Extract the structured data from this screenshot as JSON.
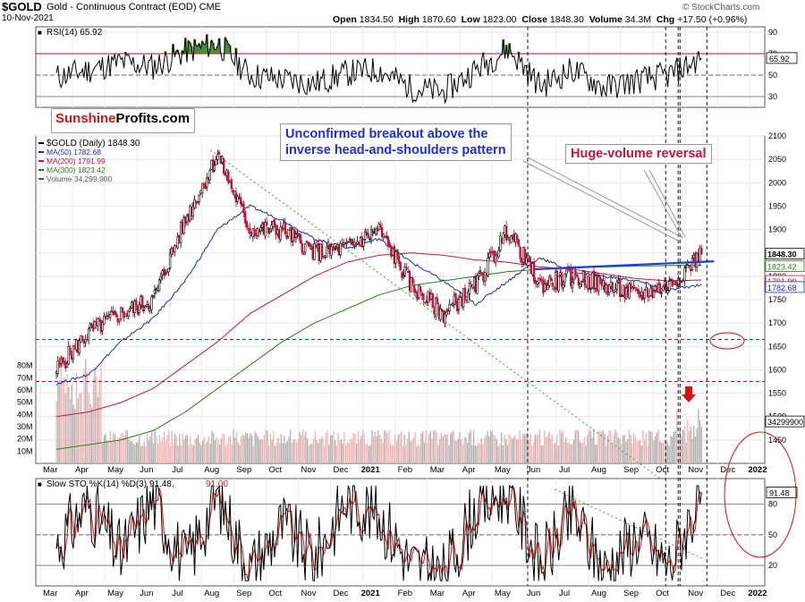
{
  "header": {
    "symbol": "$GOLD",
    "name": "Gold - Continuous Contract (EOD)",
    "exchange": "CME",
    "date": "10-Nov-2021",
    "open_label": "Open",
    "open": "1834.50",
    "high_label": "High",
    "high": "1870.60",
    "low_label": "Low",
    "low": "1823.00",
    "close_label": "Close",
    "close": "1848.30",
    "volume_label": "Volume",
    "volume": "34.3M",
    "chg_label": "Chg",
    "chg": "+17.50 (+0.96%)",
    "watermark": "© StockCharts.com"
  },
  "annotations": {
    "logo_part1": "Sunshine",
    "logo_part2": "Profits.com",
    "breakout_line1": "Unconfirmed breakout above the",
    "breakout_line2": "inverse head-and-shoulders pattern",
    "reversal": "Huge-volume reversal"
  },
  "colors": {
    "price_line": "#000000",
    "ma50": "#1a2fa8",
    "ma200": "#c0163a",
    "ma300": "#2a7a1a",
    "volume_up": "#f2b4b4",
    "volume_down": "#b0b0b0",
    "neckline": "#1f3fd6",
    "support_dashed": "#a0163a",
    "trendline": "#3aa03a",
    "stoch_k": "#000000",
    "stoch_d": "#d02020",
    "annotation_blue": "#1f2fd0",
    "annotation_red": "#c0163a",
    "rsi_fill": "#4a8a3a"
  },
  "chart_data": [
    {
      "type": "line",
      "panel": "rsi",
      "title": "RSI(14) 65.92",
      "current_value": "65.92",
      "ylim": [
        20,
        95
      ],
      "yticks": [
        "90",
        "70",
        "50",
        "30"
      ],
      "reference_lines": [
        70,
        50,
        30
      ],
      "dates": [
        "2020-03",
        "2020-04",
        "2020-05",
        "2020-06",
        "2020-07",
        "2020-08",
        "2020-09",
        "2020-10",
        "2020-11",
        "2020-12",
        "2021-01",
        "2021-02",
        "2021-03",
        "2021-04",
        "2021-05",
        "2021-06",
        "2021-07",
        "2021-08",
        "2021-09",
        "2021-10",
        "2021-11"
      ],
      "values": [
        48,
        55,
        62,
        58,
        72,
        80,
        50,
        46,
        42,
        52,
        55,
        38,
        34,
        55,
        75,
        40,
        55,
        38,
        45,
        50,
        65.92
      ]
    },
    {
      "type": "candlestick",
      "panel": "price",
      "title": "$GOLD (Daily) 1848.30",
      "ylim": [
        1400,
        2100
      ],
      "yticks": [
        "2100",
        "2050",
        "2000",
        "1950",
        "1900",
        "1850",
        "1800",
        "1750",
        "1700",
        "1650",
        "1600",
        "1550",
        "1500",
        "1450"
      ],
      "volume_yticks": [
        "80M",
        "70M",
        "60M",
        "50M",
        "40M",
        "30M",
        "20M",
        "10M"
      ],
      "x_month_labels": [
        "Mar",
        "Apr",
        "May",
        "Jun",
        "Jul",
        "Aug",
        "Sep",
        "Oct",
        "Nov",
        "Dec",
        "2021",
        "Feb",
        "Mar",
        "Apr",
        "May",
        "Jun",
        "Jul",
        "Aug",
        "Sep",
        "Oct",
        "Nov",
        "Dec",
        "2022"
      ],
      "legend": [
        {
          "label": "$GOLD (Daily) 1848.30"
        },
        {
          "label": "MA(50) 1782.68"
        },
        {
          "label": "MA(200) 1791.99"
        },
        {
          "label": "MA(300) 1823.42"
        },
        {
          "label": "Volume 34,299,900"
        }
      ],
      "right_labels": [
        "1848.30",
        "1823.42",
        "1791.99",
        "1782.68",
        "34299900"
      ],
      "dates": [
        "2020-03",
        "2020-04",
        "2020-05",
        "2020-06",
        "2020-07",
        "2020-08",
        "2020-09",
        "2020-10",
        "2020-11",
        "2020-12",
        "2021-01",
        "2021-02",
        "2021-03",
        "2021-04",
        "2021-05",
        "2021-06",
        "2021-07",
        "2021-08",
        "2021-09",
        "2021-10",
        "2021-11"
      ],
      "series": [
        {
          "name": "$GOLD",
          "values": [
            1600,
            1680,
            1720,
            1750,
            1920,
            2060,
            1900,
            1900,
            1850,
            1860,
            1900,
            1780,
            1720,
            1780,
            1900,
            1780,
            1800,
            1780,
            1760,
            1780,
            1848.3
          ]
        },
        {
          "name": "MA(50)",
          "values": [
            1570,
            1590,
            1660,
            1710,
            1790,
            1900,
            1950,
            1920,
            1880,
            1860,
            1880,
            1830,
            1790,
            1740,
            1790,
            1840,
            1810,
            1800,
            1790,
            1770,
            1782.68
          ]
        },
        {
          "name": "MA(200)",
          "values": [
            1500,
            1510,
            1530,
            1560,
            1610,
            1660,
            1720,
            1760,
            1800,
            1830,
            1845,
            1850,
            1845,
            1835,
            1830,
            1820,
            1815,
            1805,
            1795,
            1790,
            1791.99
          ]
        },
        {
          "name": "MA(300)",
          "values": [
            1430,
            1440,
            1450,
            1470,
            1510,
            1560,
            1610,
            1660,
            1700,
            1730,
            1760,
            1780,
            1790,
            1800,
            1810,
            1815,
            1818,
            1820,
            1822,
            1823,
            1823.42
          ]
        }
      ],
      "neckline": {
        "from": [
          "2021-06",
          1815
        ],
        "to": [
          "2021-11",
          1832
        ]
      },
      "support_levels": [
        1665,
        1575
      ],
      "vertical_markers": [
        "2021-06",
        "2021-10a",
        "2021-10b",
        "2021-11a",
        "2021-11b"
      ]
    },
    {
      "type": "line",
      "panel": "stochastic",
      "title": "Slow STO %K(14) %D(3) 91.48, 91.00",
      "title_main": "Slow STO %K(14) %D(3) 91.48,",
      "title_d": "91.00",
      "current_value": "91.48",
      "ylim": [
        0,
        105
      ],
      "yticks": [
        "80",
        "50",
        "20"
      ],
      "reference_lines": [
        80,
        50,
        20
      ],
      "x_month_labels": [
        "Mar",
        "Apr",
        "May",
        "Jun",
        "Jul",
        "Aug",
        "Sep",
        "Oct",
        "Nov",
        "Dec",
        "2021",
        "Feb",
        "Mar",
        "Apr",
        "May",
        "Jun",
        "Jul",
        "Aug",
        "Sep",
        "Oct",
        "Nov",
        "Dec",
        "2022"
      ],
      "series": [
        {
          "name": "%K",
          "values": [
            40,
            80,
            30,
            85,
            20,
            90,
            15,
            60,
            25,
            85,
            70,
            20,
            10,
            75,
            95,
            20,
            70,
            15,
            50,
            20,
            91.48
          ]
        },
        {
          "name": "%D",
          "values": [
            42,
            75,
            35,
            80,
            25,
            85,
            20,
            55,
            30,
            80,
            72,
            25,
            12,
            70,
            92,
            25,
            65,
            18,
            48,
            22,
            91.0
          ]
        }
      ]
    }
  ]
}
